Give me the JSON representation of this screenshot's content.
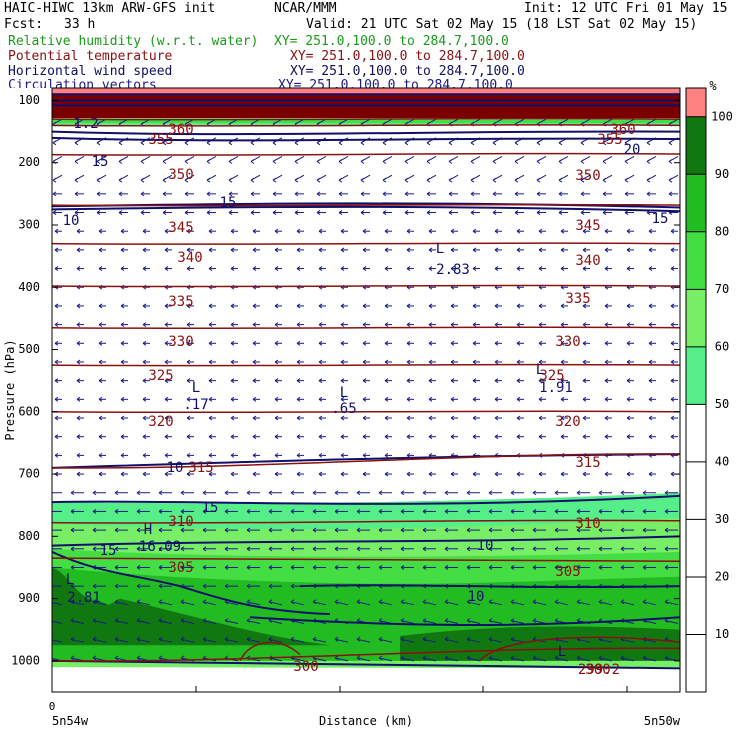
{
  "header": {
    "model": "HAIC-HIWC 13km ARW-GFS init",
    "org": "NCAR/MMM",
    "init": "Init: 12 UTC Fri 01 May 15",
    "fcst_label": "Fcst:",
    "fcst_value": "33 h",
    "valid": "Valid: 21 UTC Sat 02 May 15 (18 LST Sat 02 May 15)",
    "fields": [
      {
        "name": "Relative humidity (w.r.t. water)",
        "xy": "XY= 251.0,100.0 to 284.7,100.0",
        "color": "#1a9a1a"
      },
      {
        "name": "Potential temperature",
        "xy": "XY= 251.0,100.0 to 284.7,100.0",
        "color": "#8b1010"
      },
      {
        "name": "Horizontal wind speed",
        "xy": "XY= 251.0,100.0 to 284.7,100.0",
        "color": "#101060"
      },
      {
        "name": "Circulation vectors",
        "xy": "XY= 251.0,100.0 to 284.7,100.0",
        "color": "#1a1a8a"
      }
    ]
  },
  "chart_data": {
    "type": "cross-section",
    "xlabel": "Distance (km)",
    "ylabel": "Pressure (hPa)",
    "x_origin_label": "0",
    "x_left_label": "5n54w",
    "x_right_label": "5n50w",
    "ylim": [
      1050,
      80
    ],
    "yticks": [
      100,
      200,
      300,
      400,
      500,
      600,
      700,
      800,
      900,
      1000
    ],
    "colorbar": {
      "unit": "%",
      "ticks": [
        10,
        20,
        30,
        40,
        50,
        60,
        70,
        80,
        90,
        100
      ],
      "bands": [
        {
          "range": [
            0,
            50
          ],
          "color": "#ffffff"
        },
        {
          "range": [
            50,
            60
          ],
          "color": "#55ee88"
        },
        {
          "range": [
            60,
            70
          ],
          "color": "#77ee66"
        },
        {
          "range": [
            70,
            80
          ],
          "color": "#44dd44"
        },
        {
          "range": [
            80,
            90
          ],
          "color": "#22bb22"
        },
        {
          "range": [
            90,
            100
          ],
          "color": "#117711"
        },
        {
          "range": [
            100,
            105
          ],
          "color": "#ff8080"
        }
      ]
    },
    "theta_contours": [
      {
        "label": "360",
        "p": [
          130,
          130
        ]
      },
      {
        "label": "355",
        "p": [
          140,
          140
        ]
      },
      {
        "label": "350",
        "p": [
          187,
          186
        ]
      },
      {
        "label": "345",
        "p": [
          268,
          268
        ]
      },
      {
        "label": "340",
        "p": [
          330,
          330
        ]
      },
      {
        "label": "335",
        "p": [
          398,
          398
        ]
      },
      {
        "label": "330",
        "p": [
          465,
          465
        ]
      },
      {
        "label": "325",
        "p": [
          525,
          525
        ]
      },
      {
        "label": "320",
        "p": [
          600,
          600
        ]
      },
      {
        "label": "315",
        "p": [
          690,
          668
        ]
      },
      {
        "label": "310",
        "p": [
          778,
          775
        ]
      },
      {
        "label": "305",
        "p": [
          835,
          840
        ]
      },
      {
        "label": "300",
        "p": [
          1000,
          980
        ]
      }
    ],
    "wind_labels": [
      {
        "label": "15",
        "p": 165
      },
      {
        "label": "15",
        "p": 215
      },
      {
        "label": "10",
        "p": 270
      },
      {
        "label": "15",
        "p": 272
      },
      {
        "label": "10",
        "p": 675
      },
      {
        "label": "15",
        "p": 740
      },
      {
        "label": "15",
        "p": 810
      },
      {
        "label": "10",
        "p": 880
      },
      {
        "label": "10",
        "p": 945
      }
    ],
    "extrema": [
      {
        "kind": "L",
        "value": "2.83",
        "p": 310
      },
      {
        "kind": "L",
        "value": ".17",
        "p": 555
      },
      {
        "kind": "L",
        "value": ".65",
        "p": 560
      },
      {
        "kind": "L",
        "value": "1.91",
        "p": 530
      },
      {
        "kind": "H",
        "value": "16.09",
        "p": 810
      },
      {
        "kind": "L",
        "value": "2.81",
        "p": 880
      },
      {
        "kind": "L",
        "value": "299.2",
        "p": 1005
      }
    ]
  }
}
